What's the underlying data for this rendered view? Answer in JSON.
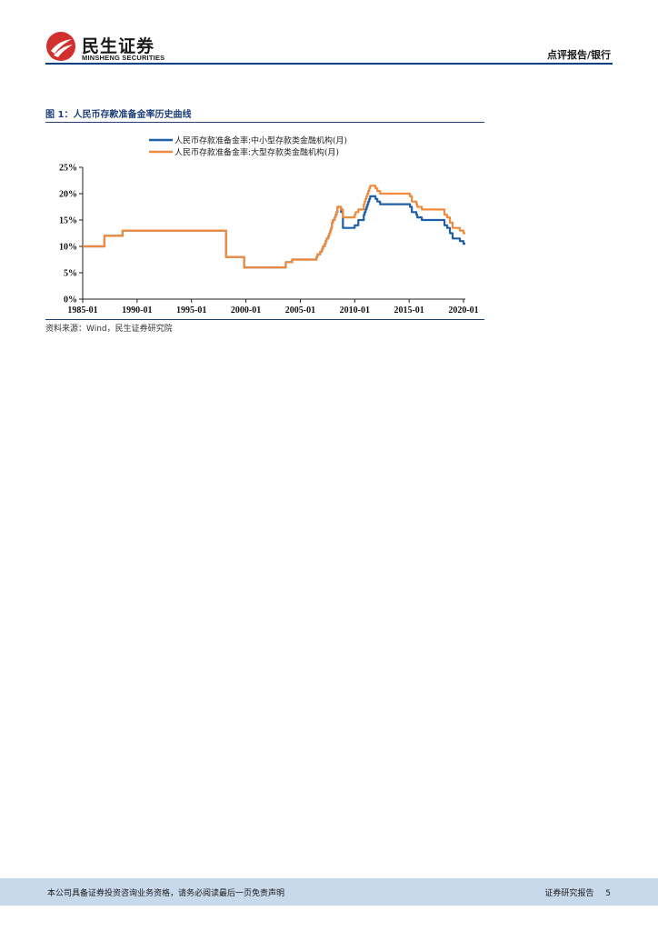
{
  "header": {
    "logo_cn": "民生证券",
    "logo_en": "MINSHENG SECURITIES",
    "report_type": "点评报告/银行",
    "logo_red": "#d32f2f"
  },
  "figure": {
    "title": "图 1：人民币存款准备金率历史曲线",
    "source": "资料来源：Wind，民生证券研究院"
  },
  "chart_data": {
    "type": "line",
    "xlabel": "",
    "ylabel": "",
    "x_ticks": [
      "1985-01",
      "1990-01",
      "1995-01",
      "2000-01",
      "2005-01",
      "2010-01",
      "2015-01",
      "2020-01"
    ],
    "y_ticks": [
      "0%",
      "5%",
      "10%",
      "15%",
      "20%",
      "25%"
    ],
    "ylim": [
      0,
      25
    ],
    "xlim": [
      "1985-01",
      "2020-03"
    ],
    "grid": false,
    "legend_position": "top-left",
    "series": [
      {
        "name": "人民币存款准备金率:中小型存款类金融机构(月)",
        "color": "#1f5ea8",
        "points": [
          [
            "1985-01",
            10
          ],
          [
            "1987-01",
            12
          ],
          [
            "1988-09",
            13
          ],
          [
            "1998-03",
            8
          ],
          [
            "1999-11",
            6
          ],
          [
            "2003-09",
            7
          ],
          [
            "2004-04",
            7.5
          ],
          [
            "2006-07",
            8
          ],
          [
            "2006-08",
            8.5
          ],
          [
            "2006-11",
            9
          ],
          [
            "2007-01",
            9.5
          ],
          [
            "2007-02",
            10
          ],
          [
            "2007-04",
            10.5
          ],
          [
            "2007-05",
            11
          ],
          [
            "2007-06",
            11.5
          ],
          [
            "2007-08",
            12
          ],
          [
            "2007-09",
            12.5
          ],
          [
            "2007-10",
            13
          ],
          [
            "2007-11",
            13.5
          ],
          [
            "2007-12",
            14.5
          ],
          [
            "2008-01",
            15
          ],
          [
            "2008-03",
            15.5
          ],
          [
            "2008-04",
            16
          ],
          [
            "2008-05",
            16.5
          ],
          [
            "2008-06",
            17.5
          ],
          [
            "2008-10",
            16.5
          ],
          [
            "2008-12",
            13.5
          ],
          [
            "2010-01",
            14
          ],
          [
            "2010-05",
            15
          ],
          [
            "2010-11",
            16
          ],
          [
            "2010-12",
            16.5
          ],
          [
            "2011-01",
            17
          ],
          [
            "2011-02",
            17.5
          ],
          [
            "2011-03",
            18
          ],
          [
            "2011-04",
            18.5
          ],
          [
            "2011-05",
            19
          ],
          [
            "2011-06",
            19.5
          ],
          [
            "2011-12",
            19
          ],
          [
            "2012-02",
            18.5
          ],
          [
            "2012-05",
            18
          ],
          [
            "2015-02",
            17.5
          ],
          [
            "2015-04",
            16.5
          ],
          [
            "2015-09",
            16
          ],
          [
            "2015-10",
            15.5
          ],
          [
            "2016-03",
            15
          ],
          [
            "2018-04",
            14
          ],
          [
            "2018-07",
            13.5
          ],
          [
            "2018-10",
            12.5
          ],
          [
            "2019-01",
            11.5
          ],
          [
            "2019-09",
            11
          ],
          [
            "2020-01",
            10.5
          ],
          [
            "2020-03",
            10.5
          ]
        ]
      },
      {
        "name": "人民币存款准备金率:大型存款类金融机构(月)",
        "color": "#f08a3c",
        "points": [
          [
            "1985-01",
            10
          ],
          [
            "1987-01",
            12
          ],
          [
            "1988-09",
            13
          ],
          [
            "1998-03",
            8
          ],
          [
            "1999-11",
            6
          ],
          [
            "2003-09",
            7
          ],
          [
            "2004-04",
            7.5
          ],
          [
            "2006-07",
            8
          ],
          [
            "2006-08",
            8.5
          ],
          [
            "2006-11",
            9
          ],
          [
            "2007-01",
            9.5
          ],
          [
            "2007-02",
            10
          ],
          [
            "2007-04",
            10.5
          ],
          [
            "2007-05",
            11
          ],
          [
            "2007-06",
            11.5
          ],
          [
            "2007-08",
            12
          ],
          [
            "2007-09",
            12.5
          ],
          [
            "2007-10",
            13
          ],
          [
            "2007-11",
            13.5
          ],
          [
            "2007-12",
            14.5
          ],
          [
            "2008-01",
            15
          ],
          [
            "2008-03",
            15.5
          ],
          [
            "2008-04",
            16
          ],
          [
            "2008-05",
            16.5
          ],
          [
            "2008-06",
            17.5
          ],
          [
            "2008-10",
            17
          ],
          [
            "2008-12",
            15.5
          ],
          [
            "2010-01",
            16
          ],
          [
            "2010-02",
            16.5
          ],
          [
            "2010-05",
            17
          ],
          [
            "2010-11",
            18
          ],
          [
            "2010-12",
            18.5
          ],
          [
            "2011-01",
            19
          ],
          [
            "2011-02",
            19.5
          ],
          [
            "2011-03",
            20
          ],
          [
            "2011-04",
            20.5
          ],
          [
            "2011-05",
            21
          ],
          [
            "2011-06",
            21.5
          ],
          [
            "2011-12",
            21
          ],
          [
            "2012-02",
            20.5
          ],
          [
            "2012-05",
            20
          ],
          [
            "2015-02",
            19.5
          ],
          [
            "2015-04",
            18.5
          ],
          [
            "2015-09",
            18
          ],
          [
            "2015-10",
            17.5
          ],
          [
            "2016-03",
            17
          ],
          [
            "2018-04",
            16
          ],
          [
            "2018-07",
            15.5
          ],
          [
            "2018-10",
            14.5
          ],
          [
            "2019-01",
            13.5
          ],
          [
            "2019-09",
            13
          ],
          [
            "2020-01",
            12.5
          ],
          [
            "2020-03",
            12.5
          ]
        ]
      }
    ]
  },
  "footer": {
    "disclaimer": "本公司具备证券投资咨询业务资格，请务必阅读最后一页免责声明",
    "doc_type": "证券研究报告",
    "page_number": "5"
  }
}
